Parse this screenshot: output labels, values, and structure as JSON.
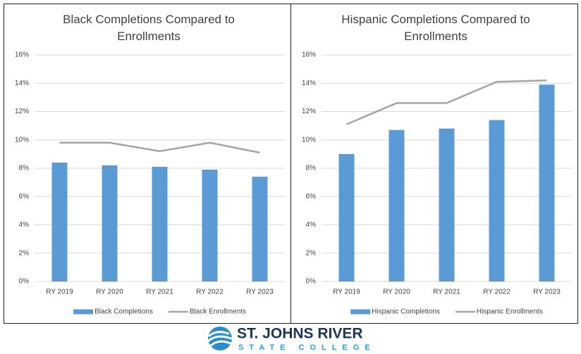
{
  "chart_data": [
    {
      "type": "combo",
      "title": "Black Completions Compared to Enrollments",
      "categories": [
        "RY 2019",
        "RY 2020",
        "RY 2021",
        "RY 2022",
        "RY 2023"
      ],
      "series": [
        {
          "name": "Black Completions",
          "type": "bar",
          "color": "#5b9bd5",
          "values": [
            8.4,
            8.2,
            8.1,
            7.9,
            7.4
          ]
        },
        {
          "name": "Black Enrollments",
          "type": "line",
          "color": "#a5a5a5",
          "values": [
            9.8,
            9.8,
            9.2,
            9.8,
            9.1
          ]
        }
      ],
      "ylim": [
        0,
        16
      ],
      "yticks": [
        {
          "value": 0,
          "label": "0%"
        },
        {
          "value": 2,
          "label": "2%"
        },
        {
          "value": 4,
          "label": "4%"
        },
        {
          "value": 6,
          "label": "6%"
        },
        {
          "value": 8,
          "label": "8%"
        },
        {
          "value": 10,
          "label": "10%"
        },
        {
          "value": 12,
          "label": "12%"
        },
        {
          "value": 14,
          "label": "14%"
        },
        {
          "value": 16,
          "label": "16%"
        }
      ],
      "grid": true,
      "legend": "bottom"
    },
    {
      "type": "combo",
      "title": "Hispanic Completions Compared to Enrollments",
      "categories": [
        "RY 2019",
        "RY 2020",
        "RY 2021",
        "RY 2022",
        "RY 2023"
      ],
      "series": [
        {
          "name": "Hispanic Completions",
          "type": "bar",
          "color": "#5b9bd5",
          "values": [
            9.0,
            10.7,
            10.8,
            11.4,
            13.9
          ]
        },
        {
          "name": "Hispanic Enrollments",
          "type": "line",
          "color": "#a5a5a5",
          "values": [
            11.1,
            12.6,
            12.6,
            14.1,
            14.2
          ]
        }
      ],
      "ylim": [
        0,
        16
      ],
      "yticks": [
        {
          "value": 0,
          "label": "0%"
        },
        {
          "value": 2,
          "label": "2%"
        },
        {
          "value": 4,
          "label": "4%"
        },
        {
          "value": 6,
          "label": "6%"
        },
        {
          "value": 8,
          "label": "8%"
        },
        {
          "value": 10,
          "label": "10%"
        },
        {
          "value": 12,
          "label": "12%"
        },
        {
          "value": 14,
          "label": "14%"
        },
        {
          "value": 16,
          "label": "16%"
        }
      ],
      "grid": true,
      "legend": "bottom"
    }
  ],
  "logo": {
    "name": "ST. JOHNS RIVER",
    "subtitle": "STATE COLLEGE"
  }
}
